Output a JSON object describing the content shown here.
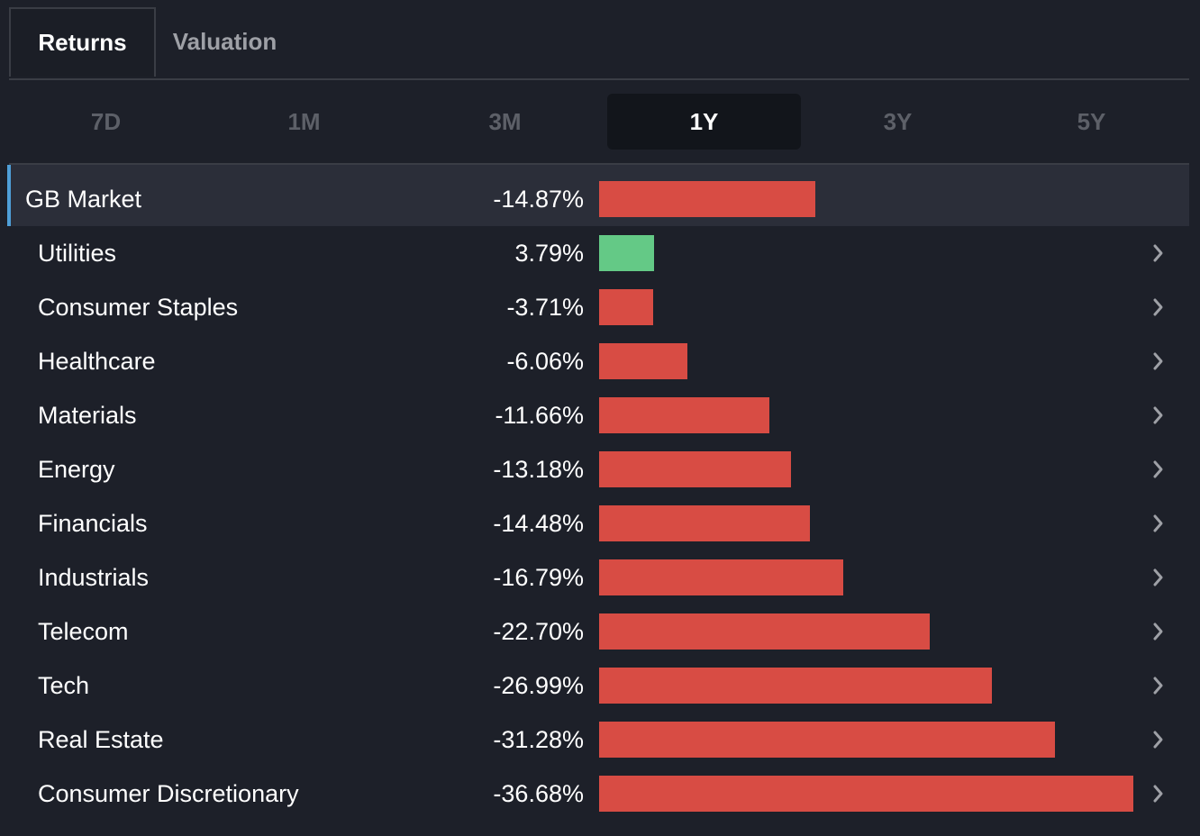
{
  "top_tabs": [
    {
      "label": "Returns",
      "active": true
    },
    {
      "label": "Valuation",
      "active": false
    }
  ],
  "periods": [
    {
      "label": "7D",
      "active": false
    },
    {
      "label": "1M",
      "active": false
    },
    {
      "label": "3M",
      "active": false
    },
    {
      "label": "1Y",
      "active": true
    },
    {
      "label": "3Y",
      "active": false
    },
    {
      "label": "5Y",
      "active": false
    }
  ],
  "colors": {
    "negative": "#d84c44",
    "positive": "#64c986",
    "accent": "#4f9fd8"
  },
  "icons": {
    "row_action": "chevron-right-icon"
  },
  "chart_data": {
    "type": "bar",
    "orientation": "horizontal",
    "title": "",
    "unit": "%",
    "scale_max_abs": 36.68,
    "rows": [
      {
        "label": "GB Market",
        "value": -14.87,
        "display": "-14.87%",
        "is_market": true
      },
      {
        "label": "Utilities",
        "value": 3.79,
        "display": "3.79%"
      },
      {
        "label": "Consumer Staples",
        "value": -3.71,
        "display": "-3.71%"
      },
      {
        "label": "Healthcare",
        "value": -6.06,
        "display": "-6.06%"
      },
      {
        "label": "Materials",
        "value": -11.66,
        "display": "-11.66%"
      },
      {
        "label": "Energy",
        "value": -13.18,
        "display": "-13.18%"
      },
      {
        "label": "Financials",
        "value": -14.48,
        "display": "-14.48%"
      },
      {
        "label": "Industrials",
        "value": -16.79,
        "display": "-16.79%"
      },
      {
        "label": "Telecom",
        "value": -22.7,
        "display": "-22.70%"
      },
      {
        "label": "Tech",
        "value": -26.99,
        "display": "-26.99%"
      },
      {
        "label": "Real Estate",
        "value": -31.28,
        "display": "-31.28%"
      },
      {
        "label": "Consumer Discretionary",
        "value": -36.68,
        "display": "-36.68%"
      }
    ]
  }
}
